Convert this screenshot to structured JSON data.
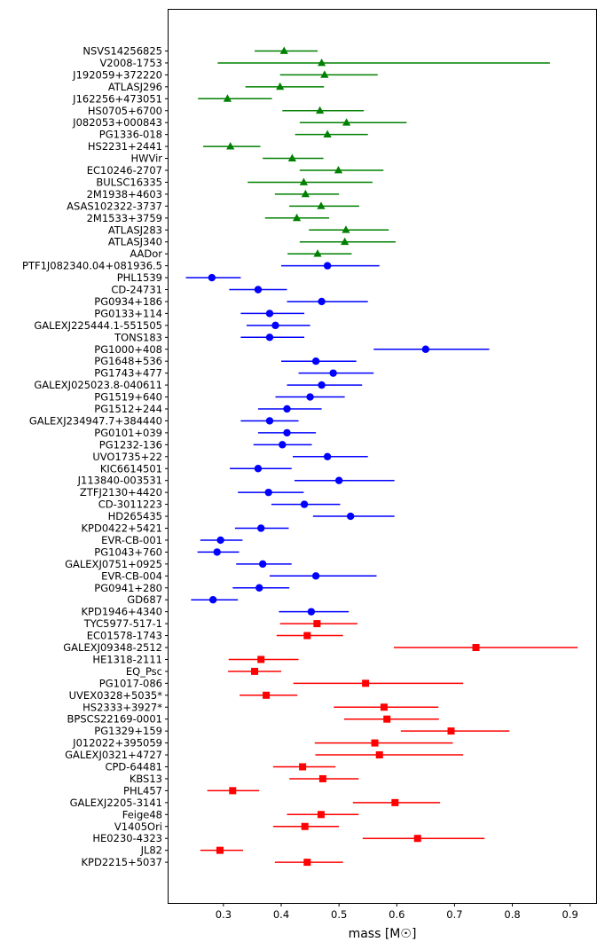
{
  "chart_data": {
    "type": "scatter",
    "xlabel": "mass [M☉]",
    "xlim": [
      0.205,
      0.945
    ],
    "xticks": [
      "0.3",
      "0.4",
      "0.5",
      "0.6",
      "0.7",
      "0.8",
      "0.9"
    ],
    "xtick_values": [
      0.3,
      0.4,
      0.5,
      0.6,
      0.7,
      0.8,
      0.9
    ],
    "grid": false,
    "error_bars": "horizontal",
    "series": [
      {
        "marker": "triangle",
        "color": "#008000",
        "points": [
          {
            "name": "NSVS14256825",
            "value": 0.405,
            "lo": 0.354,
            "hi": 0.463
          },
          {
            "name": "V2008-1753",
            "value": 0.47,
            "lo": 0.29,
            "hi": 0.865
          },
          {
            "name": "J192059+372220",
            "value": 0.475,
            "lo": 0.398,
            "hi": 0.567
          },
          {
            "name": "ATLASJ296",
            "value": 0.398,
            "lo": 0.338,
            "hi": 0.474
          },
          {
            "name": "J162256+473051",
            "value": 0.307,
            "lo": 0.256,
            "hi": 0.384
          },
          {
            "name": "HS0705+6700",
            "value": 0.467,
            "lo": 0.402,
            "hi": 0.543
          },
          {
            "name": "J082053+000843",
            "value": 0.513,
            "lo": 0.432,
            "hi": 0.617
          },
          {
            "name": "PG1336-018",
            "value": 0.48,
            "lo": 0.424,
            "hi": 0.55
          },
          {
            "name": "HS2231+2441",
            "value": 0.312,
            "lo": 0.265,
            "hi": 0.364
          },
          {
            "name": "HWVir",
            "value": 0.419,
            "lo": 0.368,
            "hi": 0.473
          },
          {
            "name": "EC10246-2707",
            "value": 0.499,
            "lo": 0.432,
            "hi": 0.577
          },
          {
            "name": "BULSC16335",
            "value": 0.439,
            "lo": 0.342,
            "hi": 0.558
          },
          {
            "name": "2M1938+4603",
            "value": 0.442,
            "lo": 0.389,
            "hi": 0.5
          },
          {
            "name": "ASAS102322-3737",
            "value": 0.469,
            "lo": 0.414,
            "hi": 0.535
          },
          {
            "name": "2M1533+3759",
            "value": 0.427,
            "lo": 0.372,
            "hi": 0.483
          },
          {
            "name": "ATLASJ283",
            "value": 0.512,
            "lo": 0.448,
            "hi": 0.586
          },
          {
            "name": "ATLASJ340",
            "value": 0.51,
            "lo": 0.432,
            "hi": 0.598
          },
          {
            "name": "AADor",
            "value": 0.463,
            "lo": 0.411,
            "hi": 0.522
          }
        ]
      },
      {
        "marker": "circle",
        "color": "#0000ff",
        "points": [
          {
            "name": "PTF1J082340.04+081936.5",
            "value": 0.48,
            "lo": 0.4,
            "hi": 0.57
          },
          {
            "name": "PHL1539",
            "value": 0.28,
            "lo": 0.235,
            "hi": 0.33
          },
          {
            "name": "CD-24731",
            "value": 0.36,
            "lo": 0.31,
            "hi": 0.41
          },
          {
            "name": "PG0934+186",
            "value": 0.47,
            "lo": 0.41,
            "hi": 0.55
          },
          {
            "name": "PG0133+114",
            "value": 0.38,
            "lo": 0.33,
            "hi": 0.44
          },
          {
            "name": "GALEXJ225444.1-551505",
            "value": 0.39,
            "lo": 0.34,
            "hi": 0.45
          },
          {
            "name": "TONS183",
            "value": 0.38,
            "lo": 0.33,
            "hi": 0.44
          },
          {
            "name": "PG1000+408",
            "value": 0.65,
            "lo": 0.56,
            "hi": 0.76
          },
          {
            "name": "PG1648+536",
            "value": 0.46,
            "lo": 0.4,
            "hi": 0.53
          },
          {
            "name": "PG1743+477",
            "value": 0.49,
            "lo": 0.43,
            "hi": 0.56
          },
          {
            "name": "GALEXJ025023.8-040611",
            "value": 0.47,
            "lo": 0.41,
            "hi": 0.54
          },
          {
            "name": "PG1519+640",
            "value": 0.45,
            "lo": 0.39,
            "hi": 0.51
          },
          {
            "name": "PG1512+244",
            "value": 0.41,
            "lo": 0.36,
            "hi": 0.47
          },
          {
            "name": "GALEXJ234947.7+384440",
            "value": 0.38,
            "lo": 0.33,
            "hi": 0.43
          },
          {
            "name": "PG0101+039",
            "value": 0.41,
            "lo": 0.36,
            "hi": 0.46
          },
          {
            "name": "PG1232-136",
            "value": 0.402,
            "lo": 0.352,
            "hi": 0.453
          },
          {
            "name": "UVO1735+22",
            "value": 0.48,
            "lo": 0.42,
            "hi": 0.55
          },
          {
            "name": "KIC6614501",
            "value": 0.36,
            "lo": 0.311,
            "hi": 0.418
          },
          {
            "name": "J113840-003531",
            "value": 0.5,
            "lo": 0.423,
            "hi": 0.596
          },
          {
            "name": "ZTFJ2130+4420",
            "value": 0.378,
            "lo": 0.325,
            "hi": 0.439
          },
          {
            "name": "CD-3011223",
            "value": 0.44,
            "lo": 0.383,
            "hi": 0.502
          },
          {
            "name": "HD265435",
            "value": 0.52,
            "lo": 0.455,
            "hi": 0.596
          },
          {
            "name": "KPD0422+5421",
            "value": 0.365,
            "lo": 0.32,
            "hi": 0.413
          },
          {
            "name": "EVR-CB-001",
            "value": 0.295,
            "lo": 0.26,
            "hi": 0.333
          },
          {
            "name": "PG1043+760",
            "value": 0.289,
            "lo": 0.255,
            "hi": 0.327
          },
          {
            "name": "GALEXJ0751+0925",
            "value": 0.368,
            "lo": 0.322,
            "hi": 0.418
          },
          {
            "name": "EVR-CB-004",
            "value": 0.46,
            "lo": 0.38,
            "hi": 0.565
          },
          {
            "name": "PG0941+280",
            "value": 0.362,
            "lo": 0.316,
            "hi": 0.414
          },
          {
            "name": "GD687",
            "value": 0.282,
            "lo": 0.244,
            "hi": 0.325
          },
          {
            "name": "KPD1946+4340",
            "value": 0.452,
            "lo": 0.396,
            "hi": 0.517
          }
        ]
      },
      {
        "marker": "square",
        "color": "#ff0000",
        "points": [
          {
            "name": "TYC5977-517-1",
            "value": 0.462,
            "lo": 0.398,
            "hi": 0.532
          },
          {
            "name": "EC01578-1743",
            "value": 0.445,
            "lo": 0.392,
            "hi": 0.507
          },
          {
            "name": "GALEXJ09348-2512",
            "value": 0.737,
            "lo": 0.595,
            "hi": 0.913
          },
          {
            "name": "HE1318-2111",
            "value": 0.365,
            "lo": 0.309,
            "hi": 0.43
          },
          {
            "name": "EQ_Psc",
            "value": 0.354,
            "lo": 0.308,
            "hi": 0.4
          },
          {
            "name": "PG1017-086",
            "value": 0.546,
            "lo": 0.421,
            "hi": 0.715
          },
          {
            "name": "UVEX0328+5035*",
            "value": 0.374,
            "lo": 0.328,
            "hi": 0.428
          },
          {
            "name": "HS2333+3927*",
            "value": 0.578,
            "lo": 0.491,
            "hi": 0.672
          },
          {
            "name": "BPSCS22169-0001",
            "value": 0.583,
            "lo": 0.509,
            "hi": 0.673
          },
          {
            "name": "PG1329+159",
            "value": 0.694,
            "lo": 0.607,
            "hi": 0.795
          },
          {
            "name": "J012022+395059",
            "value": 0.562,
            "lo": 0.458,
            "hi": 0.697
          },
          {
            "name": "GALEXJ0321+4727",
            "value": 0.57,
            "lo": 0.459,
            "hi": 0.715
          },
          {
            "name": "CPD-64481",
            "value": 0.437,
            "lo": 0.386,
            "hi": 0.494
          },
          {
            "name": "KBS13",
            "value": 0.472,
            "lo": 0.414,
            "hi": 0.534
          },
          {
            "name": "PHL457",
            "value": 0.316,
            "lo": 0.272,
            "hi": 0.362
          },
          {
            "name": "GALEXJ2205-3141",
            "value": 0.597,
            "lo": 0.524,
            "hi": 0.675
          },
          {
            "name": "Feige48",
            "value": 0.469,
            "lo": 0.41,
            "hi": 0.534
          },
          {
            "name": "V1405Ori",
            "value": 0.441,
            "lo": 0.386,
            "hi": 0.5
          },
          {
            "name": "HE0230-4323",
            "value": 0.636,
            "lo": 0.541,
            "hi": 0.752
          },
          {
            "name": "JL82",
            "value": 0.294,
            "lo": 0.26,
            "hi": 0.334
          },
          {
            "name": "KPD2215+5037",
            "value": 0.445,
            "lo": 0.389,
            "hi": 0.507
          }
        ]
      }
    ]
  }
}
